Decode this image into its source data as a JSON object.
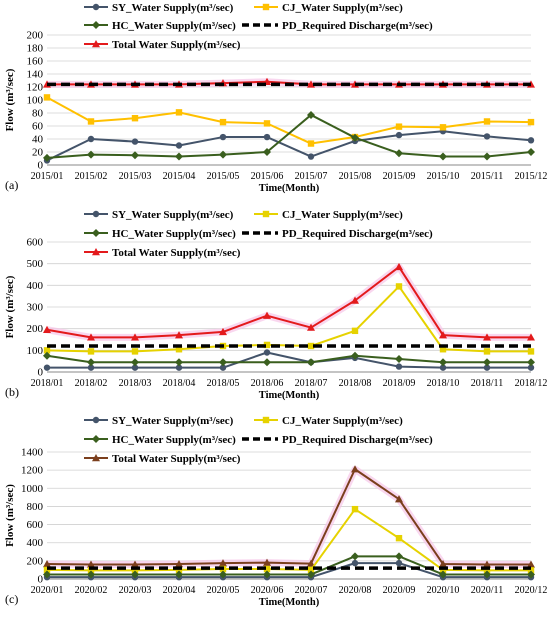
{
  "chart_data": [
    {
      "type": "line",
      "panel_label": "(a)",
      "xlabel": "Time(Month)",
      "ylabel": "Flow (m³/sec)",
      "ylim": [
        0,
        200
      ],
      "yticks": [
        0,
        20,
        40,
        60,
        80,
        100,
        120,
        140,
        160,
        180,
        200
      ],
      "grid": "horizontal",
      "legend": "top",
      "categories": [
        "2015/01",
        "2015/02",
        "2015/03",
        "2015/04",
        "2015/05",
        "2015/06",
        "2015/07",
        "2015/08",
        "2015/09",
        "2015/10",
        "2015/11",
        "2015/12"
      ],
      "series": [
        {
          "name": "SY_Water Supply(m³/sec)",
          "color": "#44546a",
          "marker": "circle",
          "dash": "solid",
          "values": [
            7,
            40,
            36,
            30,
            43,
            43,
            13,
            37,
            46,
            52,
            44,
            38
          ]
        },
        {
          "name": "CJ_Water Supply(m³/sec)",
          "color": "#ffc000",
          "marker": "square",
          "dash": "solid",
          "values": [
            104,
            67,
            72,
            81,
            66,
            64,
            33,
            43,
            59,
            58,
            67,
            66
          ]
        },
        {
          "name": "HC_Water Supply(m³/sec)",
          "color": "#3a5f1e",
          "marker": "diamond",
          "dash": "solid",
          "values": [
            11,
            16,
            15,
            13,
            16,
            20,
            77,
            42,
            18,
            13,
            13,
            20
          ]
        },
        {
          "name": "PD_Required Discharge(m³/sec)",
          "color": "#000000",
          "marker": "none",
          "dash": "dashed",
          "values": [
            124,
            124,
            124,
            124,
            124,
            124,
            124,
            124,
            124,
            124,
            124,
            124
          ]
        },
        {
          "name": "Total Water Supply(m³/sec)",
          "color": "#e31a1c",
          "marker": "triangle",
          "dash": "solid",
          "values": [
            124,
            124,
            124,
            124,
            126,
            128,
            124,
            124,
            124,
            124,
            124,
            124
          ]
        }
      ]
    },
    {
      "type": "line",
      "panel_label": "(b)",
      "xlabel": "Time(Month)",
      "ylabel": "Flow (m³/sec)",
      "ylim": [
        0,
        600
      ],
      "yticks": [
        0,
        100,
        200,
        300,
        400,
        500,
        600
      ],
      "grid": "horizontal",
      "legend": "top",
      "categories": [
        "2018/01",
        "2018/02",
        "2018/03",
        "2018/04",
        "2018/05",
        "2018/06",
        "2018/07",
        "2018/08",
        "2018/09",
        "2018/10",
        "2018/11",
        "2018/12"
      ],
      "series": [
        {
          "name": "SY_Water Supply(m³/sec)",
          "color": "#44546a",
          "marker": "circle",
          "dash": "solid",
          "values": [
            20,
            20,
            20,
            20,
            20,
            90,
            45,
            65,
            25,
            20,
            20,
            20
          ]
        },
        {
          "name": "CJ_Water Supply(m³/sec)",
          "color": "#e6d200",
          "marker": "square",
          "dash": "solid",
          "values": [
            100,
            95,
            95,
            105,
            120,
            125,
            120,
            190,
            395,
            105,
            95,
            95
          ]
        },
        {
          "name": "HC_Water Supply(m³/sec)",
          "color": "#3a5f1e",
          "marker": "diamond",
          "dash": "solid",
          "values": [
            75,
            45,
            45,
            45,
            45,
            45,
            45,
            75,
            60,
            45,
            45,
            45
          ]
        },
        {
          "name": "PD_Required Discharge(m³/sec)",
          "color": "#000000",
          "marker": "none",
          "dash": "dashed",
          "values": [
            120,
            120,
            120,
            120,
            120,
            120,
            120,
            120,
            120,
            120,
            120,
            120
          ]
        },
        {
          "name": "Total Water Supply(m³/sec)",
          "color": "#e31a1c",
          "marker": "triangle",
          "dash": "solid",
          "values": [
            195,
            160,
            160,
            170,
            185,
            260,
            205,
            330,
            485,
            170,
            160,
            160
          ]
        }
      ]
    },
    {
      "type": "line",
      "panel_label": "(c)",
      "xlabel": "Time(Month)",
      "ylabel": "Flow (m³/sec)",
      "ylim": [
        0,
        1400
      ],
      "yticks": [
        0,
        200,
        400,
        600,
        800,
        1000,
        1200,
        1400
      ],
      "grid": "horizontal",
      "legend": "top",
      "categories": [
        "2020/01",
        "2020/02",
        "2020/03",
        "2020/04",
        "2020/05",
        "2020/06",
        "2020/07",
        "2020/08",
        "2020/09",
        "2020/10",
        "2020/11",
        "2020/12"
      ],
      "series": [
        {
          "name": "SY_Water Supply(m³/sec)",
          "color": "#44546a",
          "marker": "circle",
          "dash": "solid",
          "values": [
            20,
            20,
            20,
            20,
            20,
            20,
            20,
            175,
            175,
            20,
            20,
            20
          ]
        },
        {
          "name": "CJ_Water Supply(m³/sec)",
          "color": "#e6d200",
          "marker": "square",
          "dash": "solid",
          "values": [
            100,
            95,
            95,
            100,
            110,
            110,
            100,
            770,
            450,
            100,
            95,
            95
          ]
        },
        {
          "name": "HC_Water Supply(m³/sec)",
          "color": "#3a5f1e",
          "marker": "diamond",
          "dash": "solid",
          "values": [
            50,
            50,
            50,
            50,
            50,
            50,
            50,
            250,
            250,
            50,
            50,
            50
          ]
        },
        {
          "name": "PD_Required Discharge(m³/sec)",
          "color": "#000000",
          "marker": "none",
          "dash": "dashed",
          "values": [
            120,
            120,
            120,
            120,
            120,
            120,
            120,
            120,
            120,
            120,
            120,
            120
          ]
        },
        {
          "name": "Total Water Supply(m³/sec)",
          "color": "#7b3f1d",
          "marker": "triangle",
          "dash": "solid",
          "values": [
            165,
            160,
            160,
            165,
            175,
            180,
            170,
            1210,
            880,
            165,
            160,
            160
          ]
        }
      ]
    }
  ]
}
